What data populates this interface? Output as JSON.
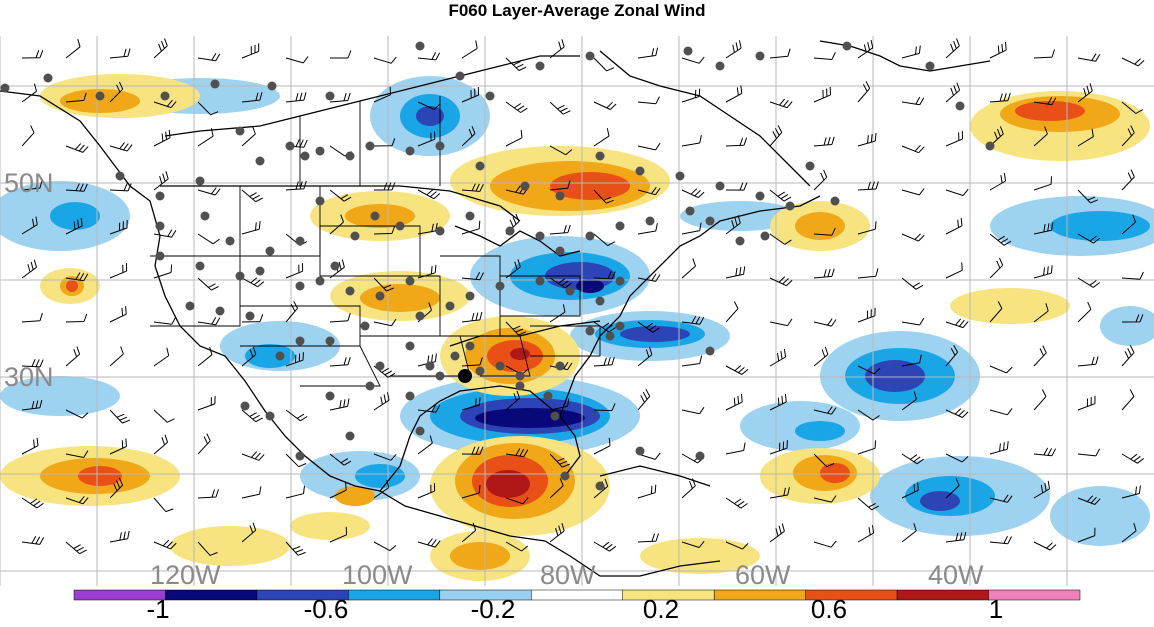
{
  "title": "F060 Layer-Average Zonal Wind",
  "map": {
    "lon_labels": [
      "120W",
      "100W",
      "80W",
      "60W",
      "40W"
    ],
    "lat_labels": [
      "50N",
      "30N"
    ]
  },
  "colorbar": {
    "tick_labels": [
      "-1",
      "-0.6",
      "-0.2",
      "0.2",
      "0.6",
      "1"
    ],
    "colors": [
      "#9a3dd0",
      "#08087a",
      "#2c44b6",
      "#1aa6e6",
      "#98d0f0",
      "#ffffff",
      "#f7e480",
      "#f0a818",
      "#e85018",
      "#b01818",
      "#f080b8"
    ]
  },
  "legend_markers": {
    "station_color": "#505050",
    "highlight_color": "#000000"
  }
}
